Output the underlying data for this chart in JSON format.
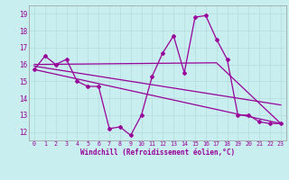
{
  "xlabel": "Windchill (Refroidissement éolien,°C)",
  "bg_color": "#c8eef0",
  "line_color": "#990099",
  "grid_color": "#aadddd",
  "xlim": [
    -0.5,
    23.5
  ],
  "ylim": [
    11.5,
    19.5
  ],
  "yticks": [
    12,
    13,
    14,
    15,
    16,
    17,
    18,
    19
  ],
  "xticks": [
    0,
    1,
    2,
    3,
    4,
    5,
    6,
    7,
    8,
    9,
    10,
    11,
    12,
    13,
    14,
    15,
    16,
    17,
    18,
    19,
    20,
    21,
    22,
    23
  ],
  "line1_x": [
    0,
    1,
    2,
    3,
    4,
    5,
    6,
    7,
    8,
    9,
    10,
    11,
    12,
    13,
    14,
    15,
    16,
    17,
    18,
    19,
    20,
    21,
    22,
    23
  ],
  "line1_y": [
    15.7,
    16.5,
    16.0,
    16.3,
    15.0,
    14.7,
    14.7,
    12.2,
    12.3,
    11.8,
    13.0,
    15.3,
    16.7,
    17.7,
    15.5,
    18.8,
    18.9,
    17.5,
    16.3,
    13.0,
    13.0,
    12.6,
    12.5,
    12.5
  ],
  "line2_x": [
    0,
    23
  ],
  "line2_y": [
    15.7,
    12.5
  ],
  "line3_x": [
    0,
    17,
    23
  ],
  "line3_y": [
    16.0,
    16.1,
    12.5
  ],
  "line4_x": [
    0,
    23
  ],
  "line4_y": [
    15.9,
    13.6
  ]
}
